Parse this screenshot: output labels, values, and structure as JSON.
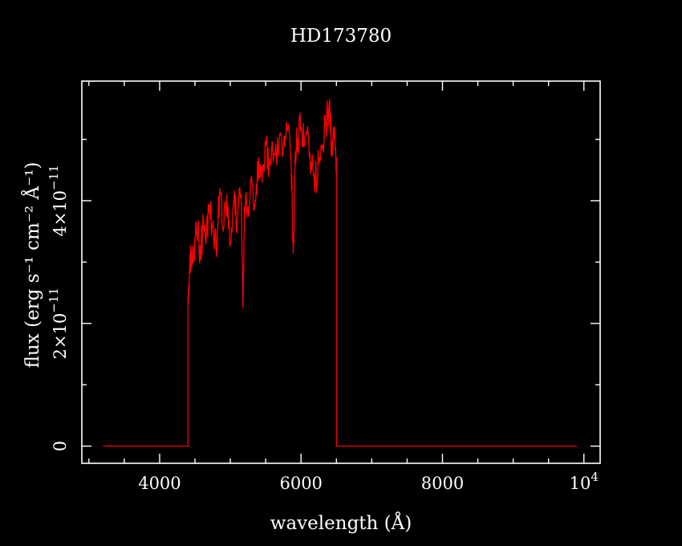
{
  "chart_data": {
    "type": "line",
    "title": "HD173780",
    "xlabel": "wavelength (Å)",
    "ylabel": "flux (erg s⁻¹ cm⁻² Å⁻¹)",
    "xlim": [
      2900,
      10230
    ],
    "ylim": [
      -2.8e-12,
      5.95e-11
    ],
    "x_ticks": [
      {
        "value": 4000,
        "label": "4000"
      },
      {
        "value": 6000,
        "label": "6000"
      },
      {
        "value": 8000,
        "label": "8000"
      },
      {
        "value": 10000,
        "label": "10",
        "exp": "4"
      }
    ],
    "y_ticks": [
      {
        "value": 0,
        "label": "0"
      },
      {
        "value": 2e-11,
        "label": "2×10",
        "exp": "−11"
      },
      {
        "value": 4e-11,
        "label": "4×10",
        "exp": "−11"
      }
    ],
    "series": [
      {
        "color": "#ff0000",
        "points": [
          [
            3200,
            0
          ],
          [
            4400,
            0
          ],
          [
            4400,
            2.2e-11
          ],
          [
            4420,
            2.8e-11
          ],
          [
            4450,
            3.2e-11
          ],
          [
            4480,
            3e-11
          ],
          [
            4500,
            3.4e-11
          ],
          [
            4540,
            3.5e-11
          ],
          [
            4580,
            3.1e-11
          ],
          [
            4620,
            3.7e-11
          ],
          [
            4660,
            3.4e-11
          ],
          [
            4700,
            3.9e-11
          ],
          [
            4750,
            3.6e-11
          ],
          [
            4800,
            3.2e-11
          ],
          [
            4850,
            4.2e-11
          ],
          [
            4900,
            3.5e-11
          ],
          [
            4950,
            4.1e-11
          ],
          [
            5000,
            3.3e-11
          ],
          [
            5050,
            4e-11
          ],
          [
            5100,
            3.7e-11
          ],
          [
            5150,
            4.1e-11
          ],
          [
            5180,
            2.25e-11
          ],
          [
            5200,
            3.9e-11
          ],
          [
            5250,
            3.9e-11
          ],
          [
            5300,
            4.4e-11
          ],
          [
            5350,
            4e-11
          ],
          [
            5400,
            4.7e-11
          ],
          [
            5450,
            4.3e-11
          ],
          [
            5500,
            4.9e-11
          ],
          [
            5550,
            4.5e-11
          ],
          [
            5600,
            4.8e-11
          ],
          [
            5650,
            4.7e-11
          ],
          [
            5700,
            5.1e-11
          ],
          [
            5750,
            4.9e-11
          ],
          [
            5800,
            5.2e-11
          ],
          [
            5860,
            4.6e-11
          ],
          [
            5890,
            3.15e-11
          ],
          [
            5920,
            4.8e-11
          ],
          [
            5960,
            5e-11
          ],
          [
            6000,
            5.2e-11
          ],
          [
            6050,
            4.9e-11
          ],
          [
            6100,
            5.1e-11
          ],
          [
            6150,
            4.5e-11
          ],
          [
            6200,
            4.3e-11
          ],
          [
            6250,
            4.6e-11
          ],
          [
            6300,
            4.9e-11
          ],
          [
            6350,
            5.2e-11
          ],
          [
            6400,
            5.6e-11
          ],
          [
            6430,
            4.9e-11
          ],
          [
            6470,
            5e-11
          ],
          [
            6500,
            4.7e-11
          ],
          [
            6500,
            0
          ],
          [
            9900,
            0
          ]
        ]
      }
    ],
    "grid": false,
    "legend": "none"
  }
}
